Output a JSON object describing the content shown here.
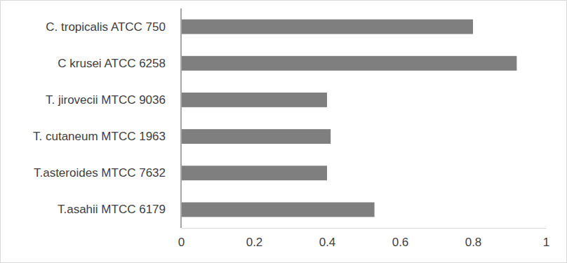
{
  "chart_data": {
    "type": "bar",
    "orientation": "horizontal",
    "categories": [
      "C. tropicalis ATCC 750",
      "C krusei ATCC 6258",
      "T. jirovecii MTCC 9036",
      "T. cutaneum MTCC 1963",
      "T.asteroides MTCC 7632",
      "T.asahii MTCC 6179"
    ],
    "values": [
      0.8,
      0.92,
      0.4,
      0.41,
      0.4,
      0.53
    ],
    "color": "#7f7f7f",
    "xlim": [
      0,
      1
    ],
    "xticks": [
      0,
      0.2,
      0.4,
      0.6,
      0.8,
      1
    ],
    "grid": false
  }
}
